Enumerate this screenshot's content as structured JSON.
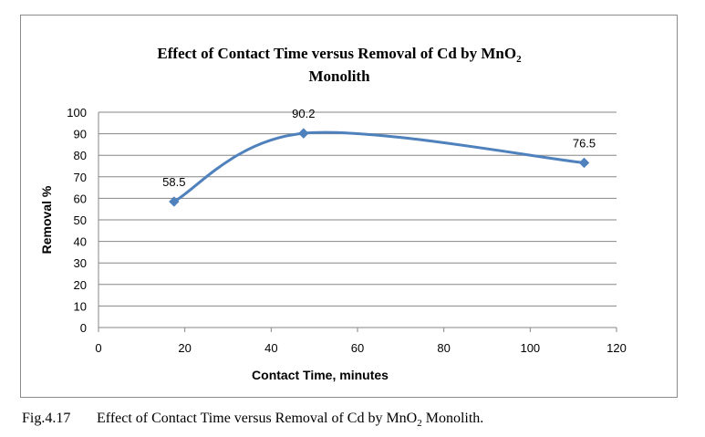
{
  "chart_data": {
    "type": "line",
    "title_line1": "Effect of Contact Time  versus Removal of Cd by MnO",
    "title_sub": "2",
    "title_line2": "Monolith",
    "xlabel": "Contact Time, minutes",
    "ylabel": "Removal %",
    "xlim": [
      0,
      120
    ],
    "ylim": [
      0,
      100
    ],
    "xticks": [
      0,
      20,
      40,
      60,
      80,
      100,
      120
    ],
    "yticks": [
      0,
      10,
      20,
      30,
      40,
      50,
      60,
      70,
      80,
      90,
      100
    ],
    "grid": true,
    "smooth": true,
    "series": [
      {
        "x": [
          17.5,
          47.5,
          112.5
        ],
        "values": [
          58.5,
          90.2,
          76.5
        ],
        "labels": [
          "58.5",
          "90.2",
          "76.5"
        ],
        "color": "#4f81bd"
      }
    ]
  },
  "caption": {
    "fig_no": "Fig.4.17",
    "text_before": "Effect of Contact Time versus Removal of Cd by MnO",
    "sub": "2",
    "text_after": " Monolith."
  }
}
